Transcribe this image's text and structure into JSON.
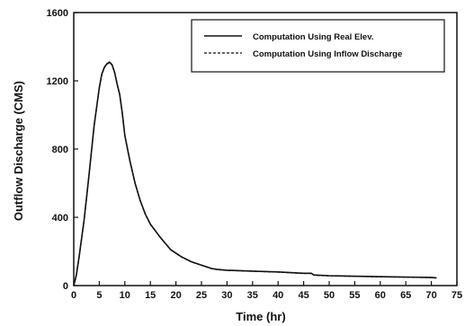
{
  "chart_data": {
    "type": "line",
    "title": "",
    "xlabel": "Time (hr)",
    "ylabel": "Outflow Discharge (CMS)",
    "xlim": [
      0,
      75
    ],
    "ylim": [
      0,
      1600
    ],
    "xticks": [
      0,
      5,
      10,
      15,
      20,
      25,
      30,
      35,
      40,
      45,
      50,
      55,
      60,
      65,
      70,
      75
    ],
    "yticks": [
      0,
      400,
      800,
      1200,
      1600
    ],
    "grid": false,
    "legend_position": "top-right",
    "series": [
      {
        "name": "Computation Using Real Elev.",
        "style": "solid",
        "color": "#111111",
        "x": [
          0,
          0.5,
          1,
          2,
          3,
          4,
          5,
          5.5,
          6,
          6.5,
          7,
          7.5,
          8,
          8.5,
          9,
          9.5,
          10,
          11,
          12,
          13,
          14,
          15,
          17,
          19,
          21,
          23,
          25,
          27,
          28,
          30,
          35,
          40,
          45,
          46.5,
          47,
          50,
          55,
          60,
          65,
          70,
          71
        ],
        "y": [
          0,
          60,
          160,
          380,
          650,
          940,
          1160,
          1240,
          1280,
          1300,
          1310,
          1295,
          1250,
          1180,
          1120,
          1010,
          880,
          730,
          600,
          500,
          420,
          360,
          280,
          210,
          170,
          140,
          120,
          100,
          95,
          90,
          85,
          80,
          72,
          72,
          62,
          58,
          55,
          52,
          50,
          48,
          45
        ]
      },
      {
        "name": "Computation Using Inflow Discharge",
        "style": "dashed",
        "color": "#111111",
        "x": [
          0,
          0.5,
          1,
          2,
          3,
          4,
          5,
          5.5,
          6,
          6.5,
          7,
          7.5,
          8,
          8.5,
          9,
          9.5,
          10,
          11,
          12,
          13,
          14,
          15,
          17,
          19,
          21,
          23,
          25,
          27,
          28,
          30,
          35,
          40,
          45,
          46.5,
          47,
          50,
          55,
          60,
          65,
          70,
          71
        ],
        "y": [
          0,
          58,
          155,
          375,
          645,
          935,
          1155,
          1235,
          1278,
          1298,
          1305,
          1292,
          1248,
          1178,
          1118,
          1005,
          876,
          726,
          598,
          498,
          418,
          358,
          279,
          209,
          169,
          139,
          119,
          99,
          94,
          89,
          84,
          79,
          71,
          71,
          61,
          57,
          54,
          51,
          49,
          47,
          44
        ]
      }
    ]
  }
}
